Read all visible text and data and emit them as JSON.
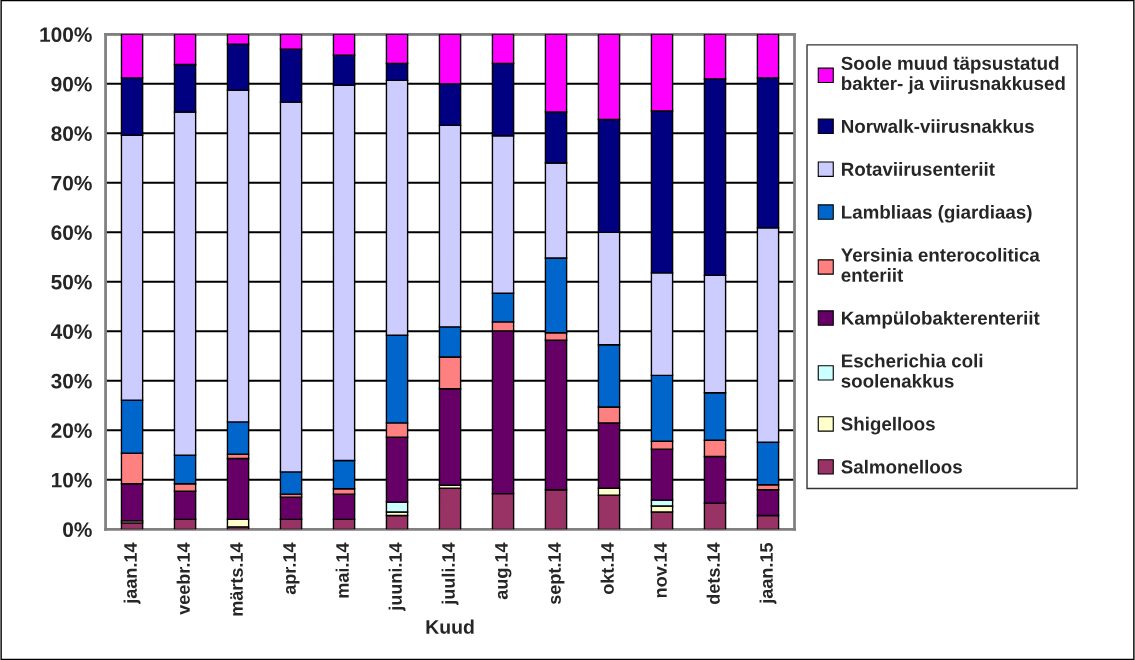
{
  "chart_data": {
    "type": "bar",
    "stacked": true,
    "xlabel": "Kuud",
    "categories": [
      "jaan.14",
      "veebr.14",
      "märts.14",
      "apr.14",
      "mai.14",
      "juuni.14",
      "juuli.14",
      "aug.14",
      "sept.14",
      "okt.14",
      "nov.14",
      "dets.14",
      "jaan.15"
    ],
    "series": [
      {
        "name": "Salmonelloos",
        "color": "#993366",
        "values": [
          1.3,
          2.0,
          0.5,
          2.0,
          2.0,
          2.8,
          8.3,
          7.2,
          8.0,
          6.9,
          3.5,
          5.3,
          2.8
        ]
      },
      {
        "name": "Shigelloos",
        "color": "#ffffcc",
        "values": [
          0.4,
          null,
          1.5,
          null,
          null,
          0.7,
          0.6,
          null,
          null,
          1.4,
          1.2,
          null,
          null
        ]
      },
      {
        "name": "Escherichia coli soolenakkus",
        "color": "#ccffff",
        "values": [
          null,
          null,
          null,
          null,
          null,
          2.0,
          null,
          null,
          null,
          null,
          1.2,
          null,
          null
        ]
      },
      {
        "name": "Kampülobakterenteriit",
        "color": "#660066",
        "values": [
          7.5,
          5.7,
          12.3,
          4.5,
          5.1,
          13.1,
          19.5,
          32.9,
          30.2,
          13.2,
          10.3,
          9.4,
          5.2
        ]
      },
      {
        "name": "Yersinia enterocolitica enteriit",
        "color": "#ff8080",
        "values": [
          6.2,
          1.5,
          0.9,
          0.6,
          1.1,
          2.9,
          6.4,
          1.8,
          1.5,
          3.2,
          1.6,
          3.3,
          1.0
        ]
      },
      {
        "name": "Lambliaas (giardiaas)",
        "color": "#0066cc",
        "values": [
          10.7,
          5.8,
          6.5,
          4.5,
          5.7,
          17.7,
          6.1,
          5.8,
          15.1,
          12.6,
          13.3,
          9.6,
          8.6
        ]
      },
      {
        "name": "Rotaviirusenteriit",
        "color": "#ccccff",
        "values": [
          53.5,
          69.3,
          67.0,
          74.7,
          75.8,
          51.5,
          40.7,
          31.8,
          19.2,
          22.7,
          20.7,
          23.7,
          43.3
        ]
      },
      {
        "name": "Norwalk-viirusnakkus",
        "color": "#000080",
        "values": [
          11.6,
          9.6,
          9.3,
          10.7,
          6.1,
          3.4,
          8.4,
          14.6,
          10.3,
          22.8,
          32.7,
          39.7,
          30.3
        ]
      },
      {
        "name": "Soole muud täpsustatud bakter- ja viirusnakkused",
        "color": "#ff00ff",
        "values": [
          8.8,
          6.1,
          2.0,
          3.0,
          4.2,
          5.9,
          10.0,
          5.9,
          15.7,
          17.2,
          15.5,
          9.0,
          8.8
        ]
      }
    ],
    "ylim": [
      0,
      100
    ],
    "yticks": [
      {
        "value": 0,
        "label": "0%"
      },
      {
        "value": 10,
        "label": "10%"
      },
      {
        "value": 20,
        "label": "20%"
      },
      {
        "value": 30,
        "label": "30%"
      },
      {
        "value": 40,
        "label": "40%"
      },
      {
        "value": 50,
        "label": "50%"
      },
      {
        "value": 60,
        "label": "60%"
      },
      {
        "value": 70,
        "label": "70%"
      },
      {
        "value": 80,
        "label": "80%"
      },
      {
        "value": 90,
        "label": "90%"
      },
      {
        "value": 100,
        "label": "100%"
      }
    ],
    "grid": "y",
    "legend": "right"
  }
}
